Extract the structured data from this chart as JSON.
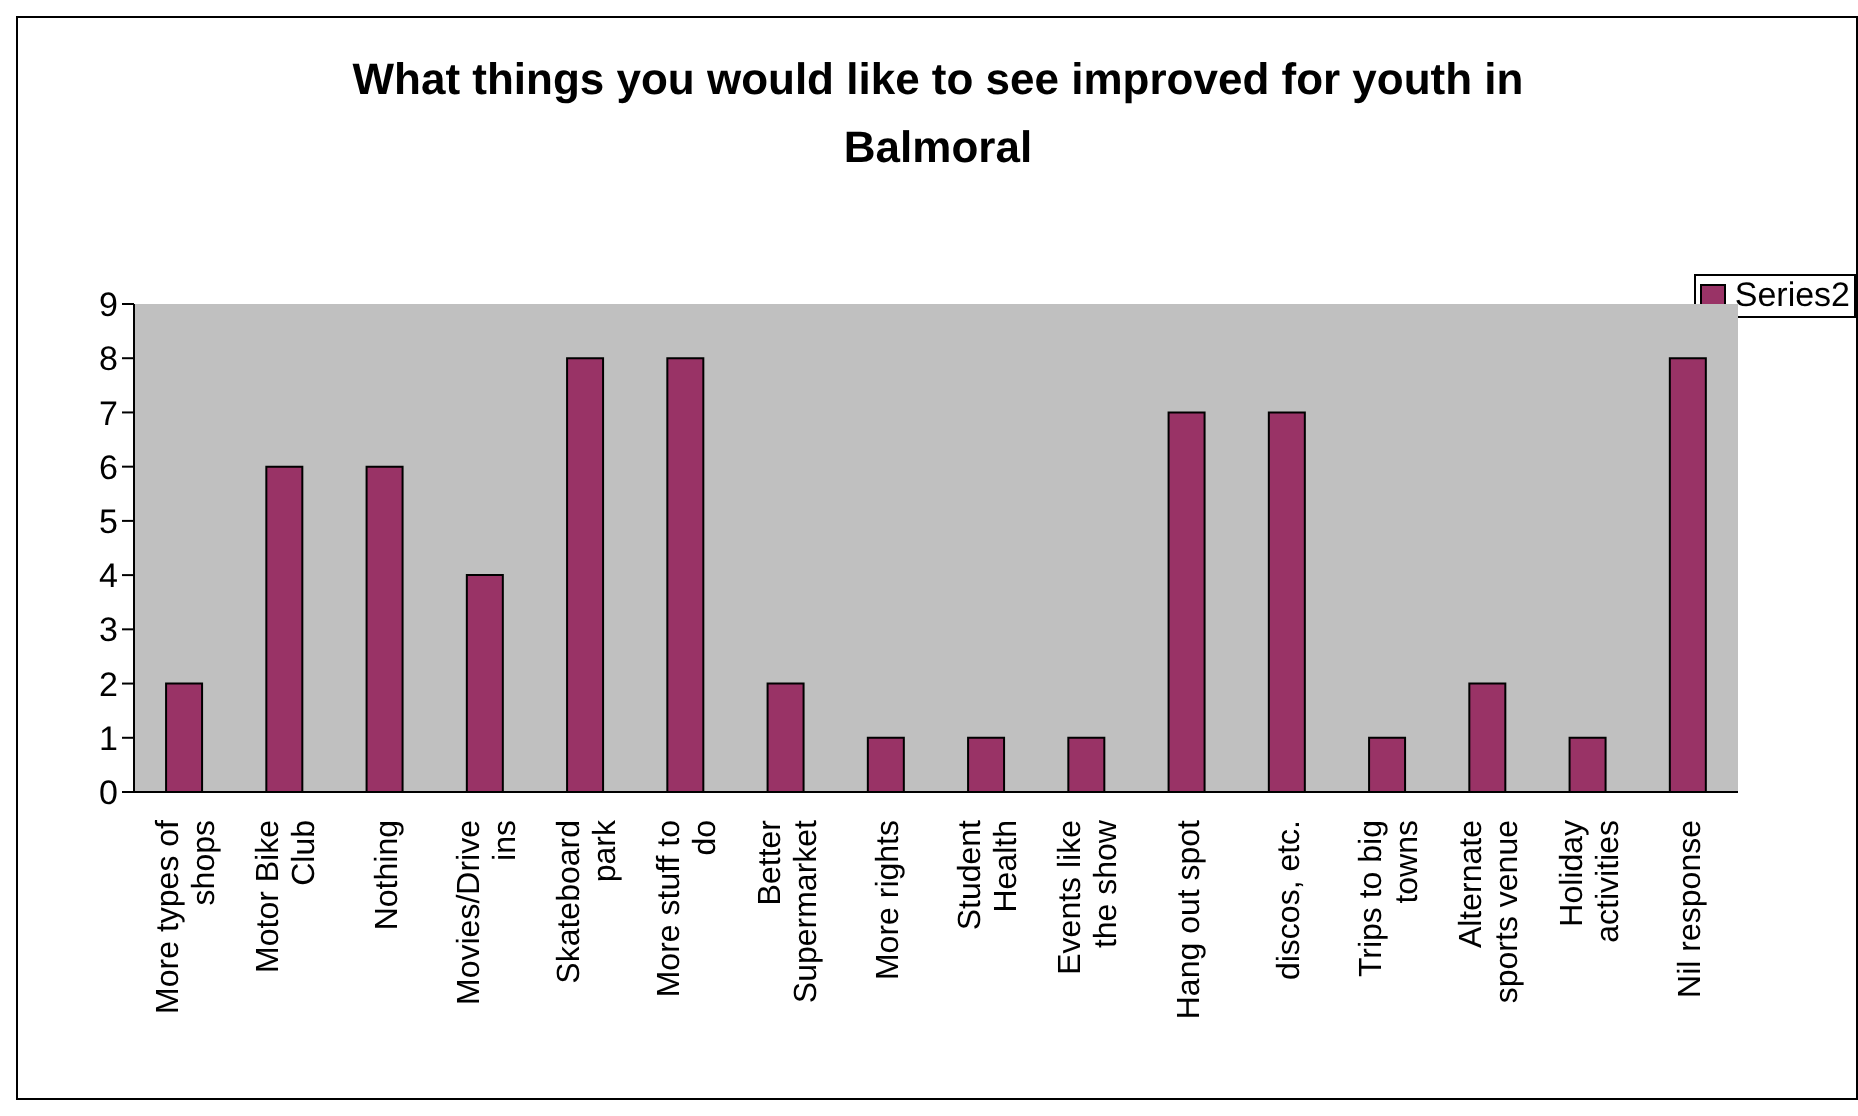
{
  "chart_data": {
    "type": "bar",
    "title": "What things you would like to see improved for youth in Balmoral",
    "categories": [
      "More types of shops",
      "Motor Bike Club",
      "Nothing",
      "Movies/Drive ins",
      "Skateboard park",
      "More stuff to do",
      "Better Supermarket",
      "More rights",
      "Student Health",
      "Events like the show",
      "Hang out spot",
      "discos, etc.",
      "Trips to big towns",
      "Alternate sports venue",
      "Holiday activities",
      "Nil response"
    ],
    "series": [
      {
        "name": "Series2",
        "color": "#993366",
        "values": [
          2,
          6,
          6,
          4,
          8,
          8,
          2,
          1,
          1,
          1,
          7,
          7,
          1,
          2,
          1,
          8
        ]
      }
    ],
    "ylim": [
      0,
      9
    ],
    "yticks": [
      0,
      1,
      2,
      3,
      4,
      5,
      6,
      7,
      8,
      9
    ],
    "grid": false,
    "legend": "top right"
  }
}
